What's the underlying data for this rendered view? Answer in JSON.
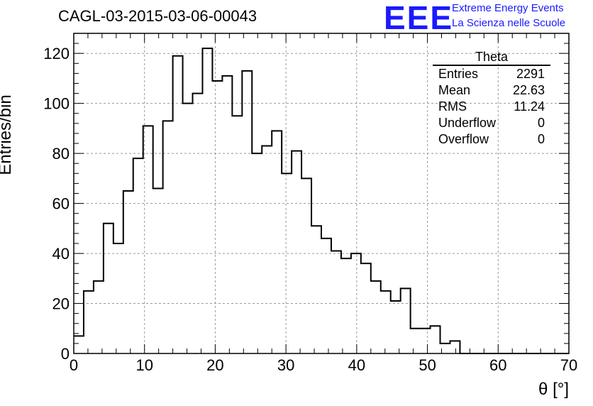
{
  "title": "CAGL-03-2015-03-06-00043",
  "logo": {
    "mark": "EEE",
    "line1": "Extreme Energy Events",
    "line2": "La Scienza nelle Scuole",
    "color": "#1a1aff"
  },
  "stats": {
    "name": "Theta",
    "rows": [
      {
        "label": "Entries",
        "value": "2291"
      },
      {
        "label": "Mean",
        "value": "22.63"
      },
      {
        "label": "RMS",
        "value": "11.24"
      },
      {
        "label": "Underflow",
        "value": "0"
      },
      {
        "label": "Overflow",
        "value": "0"
      }
    ]
  },
  "chart_data": {
    "type": "bar",
    "histogram": true,
    "title": "CAGL-03-2015-03-06-00043",
    "xlabel": "θ [°]",
    "ylabel": "Entries/bin",
    "xlim": [
      0,
      70
    ],
    "ylim": [
      0,
      128
    ],
    "xticks": [
      0,
      10,
      20,
      30,
      40,
      50,
      60,
      70
    ],
    "yticks": [
      0,
      20,
      40,
      60,
      80,
      100,
      120
    ],
    "grid": true,
    "bin_width": 1.4,
    "values": [
      7,
      25,
      29,
      52,
      44,
      65,
      78,
      91,
      66,
      93,
      119,
      100,
      104,
      122,
      109,
      111,
      95,
      113,
      80,
      83,
      89,
      72,
      81,
      70,
      51,
      46,
      41,
      38,
      40,
      36,
      29,
      25,
      21,
      26,
      10,
      10,
      11,
      4,
      5,
      0,
      0,
      0,
      0,
      0,
      0,
      0,
      0,
      0,
      0,
      0
    ]
  }
}
